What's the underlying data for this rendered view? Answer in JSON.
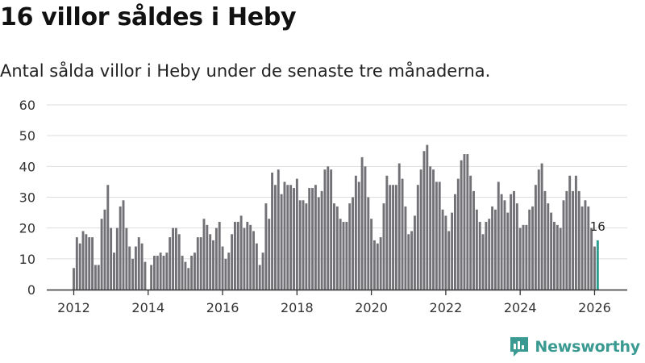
{
  "header": {
    "title": "16 villor såldes i Heby",
    "subtitle": "Antal sålda villor i Heby under de senaste tre månaderna."
  },
  "brand": {
    "name": "Newsworthy"
  },
  "colors": {
    "bar": "#727176",
    "highlight": "#2a9d8f",
    "grid": "#dddddd",
    "axis": "#333333",
    "brand": "#3a9a92"
  },
  "chart_data": {
    "type": "bar",
    "title": "16 villor såldes i Heby",
    "xlabel": "",
    "ylabel": "",
    "ylim": [
      0,
      60
    ],
    "yticks": [
      0,
      10,
      20,
      30,
      40,
      50,
      60
    ],
    "x_start_year": 2012,
    "xticks": [
      "2012",
      "2014",
      "2016",
      "2018",
      "2020",
      "2022",
      "2024",
      "2026"
    ],
    "grid": true,
    "highlight_label": "16",
    "values": [
      7,
      17,
      15,
      19,
      18,
      17,
      17,
      8,
      8,
      23,
      26,
      34,
      20,
      12,
      20,
      27,
      29,
      20,
      14,
      10,
      14,
      17,
      15,
      9,
      0,
      8,
      11,
      11,
      12,
      11,
      12,
      17,
      20,
      20,
      18,
      11,
      9,
      7,
      11,
      12,
      17,
      17,
      23,
      21,
      18,
      16,
      20,
      22,
      14,
      10,
      12,
      18,
      22,
      22,
      24,
      20,
      22,
      21,
      19,
      15,
      8,
      12,
      28,
      23,
      38,
      34,
      39,
      31,
      35,
      34,
      34,
      33,
      36,
      29,
      29,
      28,
      33,
      33,
      34,
      30,
      32,
      39,
      40,
      39,
      28,
      27,
      23,
      22,
      22,
      28,
      30,
      37,
      35,
      43,
      40,
      30,
      23,
      16,
      15,
      17,
      28,
      37,
      34,
      34,
      34,
      41,
      36,
      27,
      18,
      19,
      24,
      34,
      39,
      45,
      47,
      40,
      39,
      35,
      35,
      26,
      24,
      19,
      25,
      31,
      36,
      42,
      44,
      44,
      37,
      32,
      26,
      22,
      18,
      22,
      23,
      27,
      26,
      35,
      31,
      29,
      25,
      31,
      32,
      28,
      20,
      21,
      21,
      26,
      27,
      34,
      39,
      41,
      32,
      28,
      25,
      22,
      21,
      20,
      29,
      32,
      37,
      32,
      37,
      32,
      27,
      29,
      27,
      20,
      14,
      16
    ]
  }
}
